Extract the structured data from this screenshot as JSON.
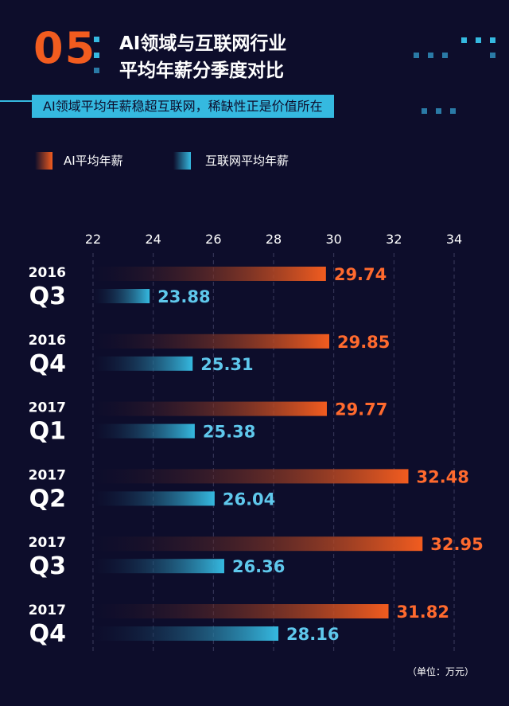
{
  "header": {
    "section_number": "05",
    "title_line1": "AI领域与互联网行业",
    "title_line2": "平均年薪分季度对比",
    "subtitle": "AI领域平均年薪稳超互联网，稀缺性正是价值所在"
  },
  "legend": {
    "ai_label": "AI平均年薪",
    "internet_label": "互联网平均年薪"
  },
  "unit": "（单位：万元）",
  "colors": {
    "background": "#0d0d2b",
    "ai_bar": "#f25c1f",
    "ai_label": "#ff6a2e",
    "internet_bar": "#35b9e0",
    "internet_label": "#5fc8ec",
    "grid": "#3a3a5c"
  },
  "chart_data": {
    "type": "bar",
    "orientation": "horizontal",
    "xlim": [
      22,
      34
    ],
    "xticks": [
      "22",
      "24",
      "26",
      "28",
      "30",
      "32",
      "34"
    ],
    "categories": [
      {
        "year": "2016",
        "quarter": "Q3"
      },
      {
        "year": "2016",
        "quarter": "Q4"
      },
      {
        "year": "2017",
        "quarter": "Q1"
      },
      {
        "year": "2017",
        "quarter": "Q2"
      },
      {
        "year": "2017",
        "quarter": "Q3"
      },
      {
        "year": "2017",
        "quarter": "Q4"
      }
    ],
    "series": [
      {
        "name": "AI平均年薪",
        "values": [
          29.74,
          29.85,
          29.77,
          32.48,
          32.95,
          31.82
        ],
        "labels": [
          "29.74",
          "29.85",
          "29.77",
          "32.48",
          "32.95",
          "31.82"
        ]
      },
      {
        "name": "互联网平均年薪",
        "values": [
          23.88,
          25.31,
          25.38,
          26.04,
          26.36,
          28.16
        ],
        "labels": [
          "23.88",
          "25.31",
          "25.38",
          "26.04",
          "26.36",
          "28.16"
        ]
      }
    ],
    "grid": true,
    "legend_position": "top-left"
  }
}
